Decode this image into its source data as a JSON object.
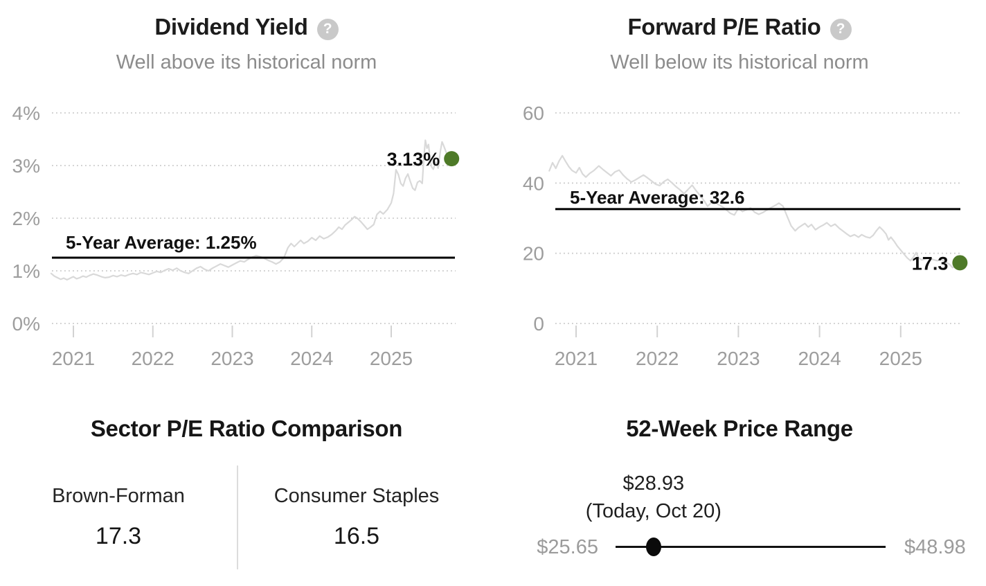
{
  "icons": {
    "help_glyph": "?"
  },
  "colors": {
    "accent_dot": "#4e7a28",
    "series_line": "#d9d9d9",
    "average_line": "#000000",
    "gridline": "#c9c9c9",
    "axis_text": "#9d9d9d"
  },
  "chart_data": [
    {
      "type": "line",
      "title": "Dividend Yield",
      "subtitle": "Well above its historical norm",
      "y_ticks": [
        {
          "label": "0%",
          "value": 0
        },
        {
          "label": "1%",
          "value": 1
        },
        {
          "label": "2%",
          "value": 2
        },
        {
          "label": "3%",
          "value": 3
        },
        {
          "label": "4%",
          "value": 4
        }
      ],
      "ylim": [
        0,
        4.2
      ],
      "x_ticks": [
        {
          "label": "2021",
          "year": 2021
        },
        {
          "label": "2022",
          "year": 2022
        },
        {
          "label": "2023",
          "year": 2023
        },
        {
          "label": "2024",
          "year": 2024
        },
        {
          "label": "2025",
          "year": 2025
        }
      ],
      "average_label": "5-Year Average: 1.25%",
      "average_value": 1.25,
      "current_label": "3.13%",
      "current_value": 3.13,
      "grid": "dotted-horizontal",
      "legend": "none",
      "series": [
        [
          2020.72,
          0.95
        ],
        [
          2020.76,
          0.9
        ],
        [
          2020.8,
          0.87
        ],
        [
          2020.84,
          0.84
        ],
        [
          2020.88,
          0.86
        ],
        [
          2020.92,
          0.83
        ],
        [
          2020.96,
          0.86
        ],
        [
          2021.0,
          0.89
        ],
        [
          2021.04,
          0.85
        ],
        [
          2021.08,
          0.87
        ],
        [
          2021.12,
          0.9
        ],
        [
          2021.16,
          0.88
        ],
        [
          2021.2,
          0.91
        ],
        [
          2021.25,
          0.94
        ],
        [
          2021.3,
          0.92
        ],
        [
          2021.35,
          0.89
        ],
        [
          2021.4,
          0.87
        ],
        [
          2021.45,
          0.88
        ],
        [
          2021.5,
          0.91
        ],
        [
          2021.55,
          0.89
        ],
        [
          2021.6,
          0.92
        ],
        [
          2021.65,
          0.9
        ],
        [
          2021.7,
          0.93
        ],
        [
          2021.75,
          0.95
        ],
        [
          2021.8,
          0.93
        ],
        [
          2021.85,
          0.97
        ],
        [
          2021.9,
          0.95
        ],
        [
          2021.95,
          0.93
        ],
        [
          2022.0,
          0.96
        ],
        [
          2022.05,
          0.99
        ],
        [
          2022.1,
          0.97
        ],
        [
          2022.15,
          1.01
        ],
        [
          2022.2,
          1.04
        ],
        [
          2022.25,
          1.01
        ],
        [
          2022.3,
          1.05
        ],
        [
          2022.35,
          1.0
        ],
        [
          2022.4,
          0.97
        ],
        [
          2022.45,
          0.95
        ],
        [
          2022.5,
          1.0
        ],
        [
          2022.55,
          1.05
        ],
        [
          2022.6,
          1.08
        ],
        [
          2022.65,
          1.03
        ],
        [
          2022.7,
          1.0
        ],
        [
          2022.75,
          1.05
        ],
        [
          2022.8,
          1.09
        ],
        [
          2022.85,
          1.13
        ],
        [
          2022.9,
          1.1
        ],
        [
          2022.95,
          1.07
        ],
        [
          2023.0,
          1.11
        ],
        [
          2023.05,
          1.15
        ],
        [
          2023.1,
          1.19
        ],
        [
          2023.15,
          1.17
        ],
        [
          2023.2,
          1.22
        ],
        [
          2023.25,
          1.26
        ],
        [
          2023.3,
          1.29
        ],
        [
          2023.35,
          1.27
        ],
        [
          2023.4,
          1.24
        ],
        [
          2023.45,
          1.2
        ],
        [
          2023.5,
          1.17
        ],
        [
          2023.55,
          1.13
        ],
        [
          2023.6,
          1.17
        ],
        [
          2023.65,
          1.25
        ],
        [
          2023.7,
          1.44
        ],
        [
          2023.74,
          1.52
        ],
        [
          2023.78,
          1.46
        ],
        [
          2023.82,
          1.52
        ],
        [
          2023.86,
          1.58
        ],
        [
          2023.9,
          1.52
        ],
        [
          2023.95,
          1.56
        ],
        [
          2024.0,
          1.63
        ],
        [
          2024.05,
          1.58
        ],
        [
          2024.1,
          1.66
        ],
        [
          2024.15,
          1.61
        ],
        [
          2024.2,
          1.64
        ],
        [
          2024.25,
          1.69
        ],
        [
          2024.3,
          1.76
        ],
        [
          2024.34,
          1.83
        ],
        [
          2024.38,
          1.79
        ],
        [
          2024.42,
          1.87
        ],
        [
          2024.46,
          1.92
        ],
        [
          2024.5,
          1.97
        ],
        [
          2024.54,
          2.03
        ],
        [
          2024.58,
          1.99
        ],
        [
          2024.62,
          1.93
        ],
        [
          2024.66,
          1.86
        ],
        [
          2024.7,
          1.79
        ],
        [
          2024.74,
          1.83
        ],
        [
          2024.78,
          1.88
        ],
        [
          2024.82,
          2.07
        ],
        [
          2024.86,
          2.13
        ],
        [
          2024.9,
          2.08
        ],
        [
          2024.95,
          2.16
        ],
        [
          2025.0,
          2.29
        ],
        [
          2025.03,
          2.47
        ],
        [
          2025.06,
          2.92
        ],
        [
          2025.09,
          2.83
        ],
        [
          2025.12,
          2.66
        ],
        [
          2025.15,
          2.61
        ],
        [
          2025.18,
          2.76
        ],
        [
          2025.21,
          2.84
        ],
        [
          2025.24,
          2.7
        ],
        [
          2025.27,
          2.57
        ],
        [
          2025.3,
          2.53
        ],
        [
          2025.33,
          2.68
        ],
        [
          2025.36,
          2.71
        ],
        [
          2025.39,
          2.66
        ],
        [
          2025.41,
          3.12
        ],
        [
          2025.43,
          3.48
        ],
        [
          2025.45,
          3.33
        ],
        [
          2025.47,
          3.4
        ],
        [
          2025.49,
          3.1
        ],
        [
          2025.51,
          2.97
        ],
        [
          2025.53,
          2.93
        ],
        [
          2025.56,
          3.07
        ],
        [
          2025.59,
          2.95
        ],
        [
          2025.62,
          3.28
        ],
        [
          2025.64,
          3.45
        ],
        [
          2025.66,
          3.38
        ],
        [
          2025.68,
          3.3
        ],
        [
          2025.7,
          3.22
        ],
        [
          2025.72,
          3.04
        ],
        [
          2025.74,
          3.08
        ],
        [
          2025.76,
          3.13
        ]
      ]
    },
    {
      "type": "line",
      "title": "Forward P/E Ratio",
      "subtitle": "Well below its historical norm",
      "y_ticks": [
        {
          "label": "0",
          "value": 0
        },
        {
          "label": "20",
          "value": 20
        },
        {
          "label": "40",
          "value": 40
        },
        {
          "label": "60",
          "value": 60
        }
      ],
      "ylim": [
        0,
        62
      ],
      "x_ticks": [
        {
          "label": "2021",
          "year": 2021
        },
        {
          "label": "2022",
          "year": 2022
        },
        {
          "label": "2023",
          "year": 2023
        },
        {
          "label": "2024",
          "year": 2024
        },
        {
          "label": "2025",
          "year": 2025
        }
      ],
      "average_label": "5-Year Average: 32.6",
      "average_value": 32.6,
      "current_label": "17.3",
      "current_value": 17.3,
      "grid": "dotted-horizontal",
      "legend": "none",
      "series": [
        [
          2020.67,
          43.5
        ],
        [
          2020.71,
          45.8
        ],
        [
          2020.75,
          44.2
        ],
        [
          2020.79,
          46.3
        ],
        [
          2020.83,
          47.8
        ],
        [
          2020.87,
          46.2
        ],
        [
          2020.91,
          44.7
        ],
        [
          2020.95,
          43.6
        ],
        [
          2021.0,
          42.9
        ],
        [
          2021.04,
          44.4
        ],
        [
          2021.08,
          42.6
        ],
        [
          2021.12,
          41.7
        ],
        [
          2021.17,
          42.8
        ],
        [
          2021.22,
          43.6
        ],
        [
          2021.28,
          44.9
        ],
        [
          2021.33,
          43.9
        ],
        [
          2021.38,
          43.0
        ],
        [
          2021.43,
          42.1
        ],
        [
          2021.48,
          43.2
        ],
        [
          2021.53,
          43.7
        ],
        [
          2021.58,
          42.3
        ],
        [
          2021.63,
          41.2
        ],
        [
          2021.68,
          40.3
        ],
        [
          2021.73,
          40.9
        ],
        [
          2021.78,
          41.6
        ],
        [
          2021.83,
          42.3
        ],
        [
          2021.88,
          41.5
        ],
        [
          2021.93,
          40.6
        ],
        [
          2021.98,
          39.7
        ],
        [
          2022.03,
          39.3
        ],
        [
          2022.08,
          40.4
        ],
        [
          2022.13,
          41.1
        ],
        [
          2022.18,
          40.1
        ],
        [
          2022.23,
          39.0
        ],
        [
          2022.28,
          38.1
        ],
        [
          2022.33,
          37.0
        ],
        [
          2022.38,
          38.2
        ],
        [
          2022.43,
          39.4
        ],
        [
          2022.48,
          37.8
        ],
        [
          2022.53,
          36.4
        ],
        [
          2022.58,
          34.9
        ],
        [
          2022.62,
          33.4
        ],
        [
          2022.66,
          34.3
        ],
        [
          2022.7,
          34.9
        ],
        [
          2022.75,
          33.9
        ],
        [
          2022.8,
          33.3
        ],
        [
          2022.85,
          32.4
        ],
        [
          2022.9,
          31.4
        ],
        [
          2022.95,
          30.9
        ],
        [
          2023.0,
          32.8
        ],
        [
          2023.05,
          31.9
        ],
        [
          2023.1,
          32.4
        ],
        [
          2023.15,
          32.9
        ],
        [
          2023.2,
          31.7
        ],
        [
          2023.25,
          31.1
        ],
        [
          2023.3,
          31.6
        ],
        [
          2023.35,
          32.3
        ],
        [
          2023.4,
          33.0
        ],
        [
          2023.45,
          33.6
        ],
        [
          2023.5,
          34.3
        ],
        [
          2023.55,
          33.4
        ],
        [
          2023.6,
          30.6
        ],
        [
          2023.65,
          27.8
        ],
        [
          2023.7,
          26.4
        ],
        [
          2023.74,
          27.3
        ],
        [
          2023.78,
          27.9
        ],
        [
          2023.82,
          28.5
        ],
        [
          2023.86,
          27.5
        ],
        [
          2023.9,
          28.2
        ],
        [
          2023.95,
          26.7
        ],
        [
          2024.0,
          27.5
        ],
        [
          2024.05,
          28.1
        ],
        [
          2024.09,
          28.7
        ],
        [
          2024.14,
          27.7
        ],
        [
          2024.19,
          28.3
        ],
        [
          2024.24,
          27.2
        ],
        [
          2024.28,
          26.5
        ],
        [
          2024.33,
          25.6
        ],
        [
          2024.38,
          24.8
        ],
        [
          2024.43,
          25.3
        ],
        [
          2024.48,
          24.6
        ],
        [
          2024.52,
          25.3
        ],
        [
          2024.57,
          24.7
        ],
        [
          2024.62,
          24.4
        ],
        [
          2024.66,
          25.1
        ],
        [
          2024.7,
          26.4
        ],
        [
          2024.74,
          27.5
        ],
        [
          2024.78,
          26.6
        ],
        [
          2024.82,
          25.5
        ],
        [
          2024.85,
          23.8
        ],
        [
          2024.88,
          24.6
        ],
        [
          2024.92,
          23.4
        ],
        [
          2024.96,
          22.0
        ],
        [
          2025.0,
          20.9
        ],
        [
          2025.04,
          19.8
        ],
        [
          2025.08,
          18.7
        ],
        [
          2025.12,
          17.9
        ],
        [
          2025.16,
          19.0
        ],
        [
          2025.19,
          20.2
        ],
        [
          2025.22,
          18.7
        ],
        [
          2025.26,
          18.1
        ],
        [
          2025.3,
          18.4
        ],
        [
          2025.35,
          18.7
        ],
        [
          2025.4,
          18.2
        ],
        [
          2025.45,
          17.9
        ],
        [
          2025.5,
          18.3
        ],
        [
          2025.55,
          17.6
        ],
        [
          2025.6,
          16.9
        ],
        [
          2025.64,
          15.9
        ],
        [
          2025.67,
          16.4
        ],
        [
          2025.7,
          16.9
        ],
        [
          2025.73,
          17.3
        ]
      ]
    }
  ],
  "sector_comparison": {
    "title": "Sector P/E Ratio Comparison",
    "columns": [
      {
        "label": "Brown-Forman",
        "value": "17.3"
      },
      {
        "label": "Consumer Staples",
        "value": "16.5"
      }
    ]
  },
  "price_range": {
    "title": "52-Week Price Range",
    "current_label": "$28.93",
    "current_date": "(Today, Oct 20)",
    "min_label": "$25.65",
    "max_label": "$48.98",
    "current_value": 28.93,
    "min_value": 25.65,
    "max_value": 48.98
  }
}
